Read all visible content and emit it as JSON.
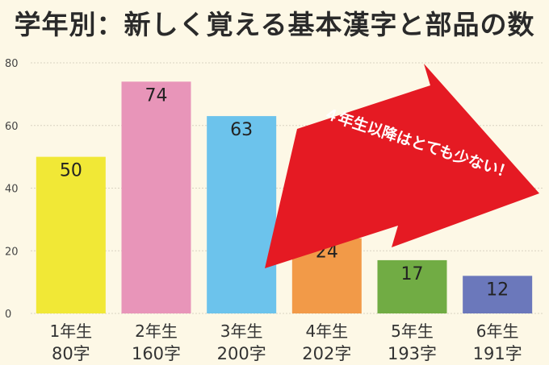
{
  "chart_data": {
    "type": "bar",
    "title": "学年別：新しく覚える基本漢字と部品の数",
    "categories": [
      "1年生",
      "2年生",
      "3年生",
      "4年生",
      "5年生",
      "6年生"
    ],
    "sublabels": [
      "80字",
      "160字",
      "200字",
      "202字",
      "193字",
      "191字"
    ],
    "values": [
      50,
      74,
      63,
      24,
      17,
      12
    ],
    "colors": [
      "#f1e836",
      "#e895b9",
      "#6cc3ec",
      "#f29a48",
      "#71ac44",
      "#6b78bb"
    ],
    "ylim": [
      0,
      80
    ],
    "yticks": [
      0,
      20,
      40,
      60,
      80
    ],
    "grid": true,
    "annotation": "４年生以降はとても少ない！"
  },
  "annotation_color": "#e51a23"
}
